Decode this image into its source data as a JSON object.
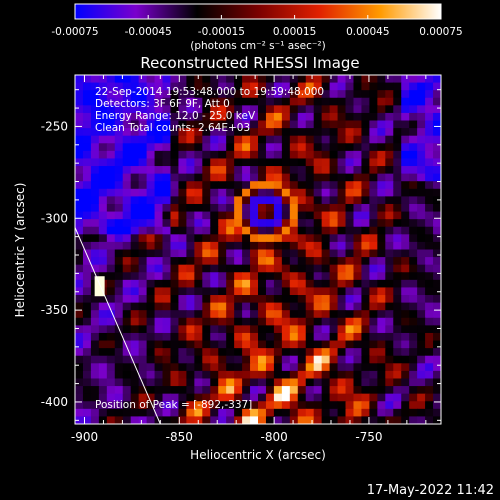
{
  "chart_data": {
    "type": "heatmap",
    "title": "Reconstructed RHESSI Image",
    "xlabel": "Heliocentric X (arcsec)",
    "ylabel": "Heliocentric Y (arcsec)",
    "xlim": [
      -905,
      -712
    ],
    "ylim": [
      -412,
      -222
    ],
    "xticks": [
      -900,
      -850,
      -800,
      -750
    ],
    "yticks": [
      -250,
      -300,
      -350,
      -400
    ],
    "colorbar": {
      "label": "(photons cm⁻² s⁻¹ asec⁻²)",
      "ticks": [
        "-0.00075",
        "-0.00045",
        "-0.00015",
        "0.00015",
        "0.00045",
        "0.00075"
      ],
      "range": [
        -0.00075,
        0.00075
      ],
      "colors": [
        "#0000ff",
        "#7a00cc",
        "#000000",
        "#7a0000",
        "#e02000",
        "#ff9a00",
        "#ffffff"
      ]
    },
    "annotations": [
      "22-Sep-2014 19:53:48.000 to 19:59:48.000",
      "Detectors: 3F 6F 9F, Att 0",
      "Energy Range: 12.0 - 25.0 keV",
      "Clean    Total counts: 2.64E+03"
    ],
    "peak_label": "Position of Peak = [-892,-337]",
    "peak": [
      -892,
      -337
    ],
    "limb": {
      "from": [
        -905,
        -305
      ],
      "to": [
        -860,
        -412
      ]
    }
  },
  "footer": {
    "timestamp": "17-May-2022 11:42"
  }
}
